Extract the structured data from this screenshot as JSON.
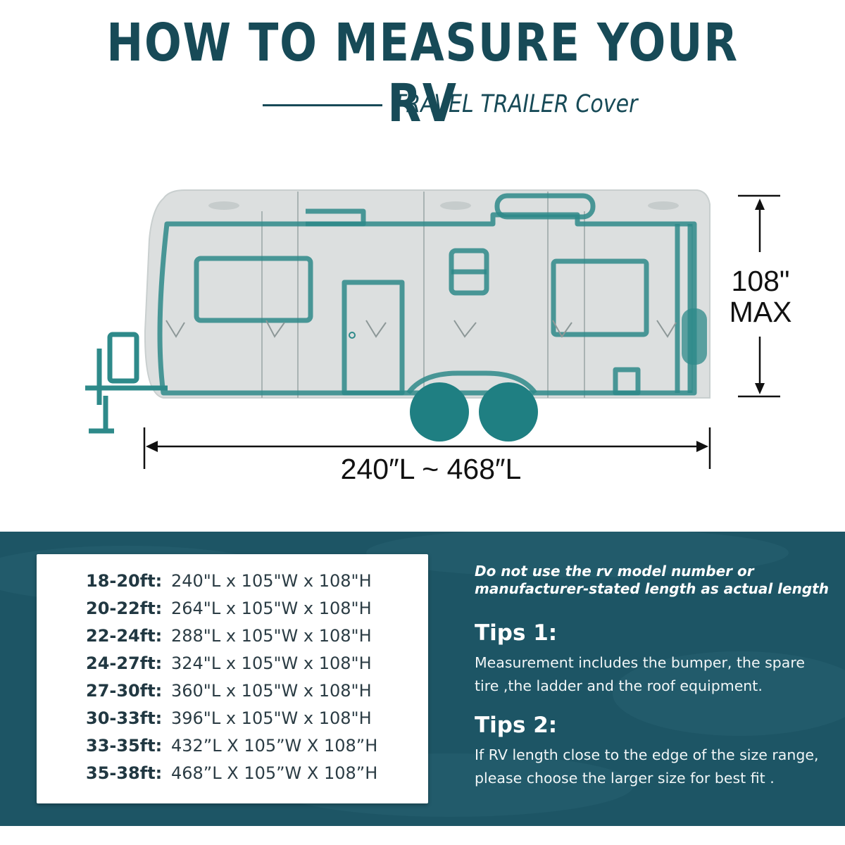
{
  "header": {
    "title": "HOW TO MEASURE YOUR RV",
    "subtitle": "TRAVEL TRAILER Cover"
  },
  "diagram": {
    "height_value": "108\"",
    "height_note": "MAX",
    "length_label": "240″L ~ 468″L",
    "colors": {
      "outline": "#2e8a8a",
      "body": "#d9dedd",
      "wheel": "#1f7f82"
    }
  },
  "size_table": {
    "rows": [
      {
        "range": "18-20ft:",
        "dims": "240\"L x 105\"W x 108\"H"
      },
      {
        "range": "20-22ft:",
        "dims": "264\"L x 105\"W x 108\"H"
      },
      {
        "range": "22-24ft:",
        "dims": "288\"L x 105\"W x 108\"H"
      },
      {
        "range": "24-27ft:",
        "dims": "324\"L x 105\"W x 108\"H"
      },
      {
        "range": "27-30ft:",
        "dims": "360\"L x 105\"W x 108\"H"
      },
      {
        "range": "30-33ft:",
        "dims": "396\"L x 105\"W x 108\"H"
      },
      {
        "range": "33-35ft:",
        "dims": "432”L X 105”W X 108”H"
      },
      {
        "range": "35-38ft:",
        "dims": "468”L X 105”W X 108”H"
      }
    ]
  },
  "notes": {
    "warning_lines": [
      "Do not use the rv model number or",
      "manufacturer-stated length as actual length"
    ],
    "tips": [
      {
        "heading": "Tips 1:",
        "lines": [
          "Measurement includes the bumper, the spare",
          "tire ,the ladder and the roof equipment."
        ]
      },
      {
        "heading": "Tips 2:",
        "lines": [
          "If RV length close to the edge of the size range,",
          "please choose the larger size for best fit ."
        ]
      }
    ]
  },
  "colors": {
    "brand": "#174a57",
    "panel": "#1d5565",
    "card": "#ffffff"
  }
}
